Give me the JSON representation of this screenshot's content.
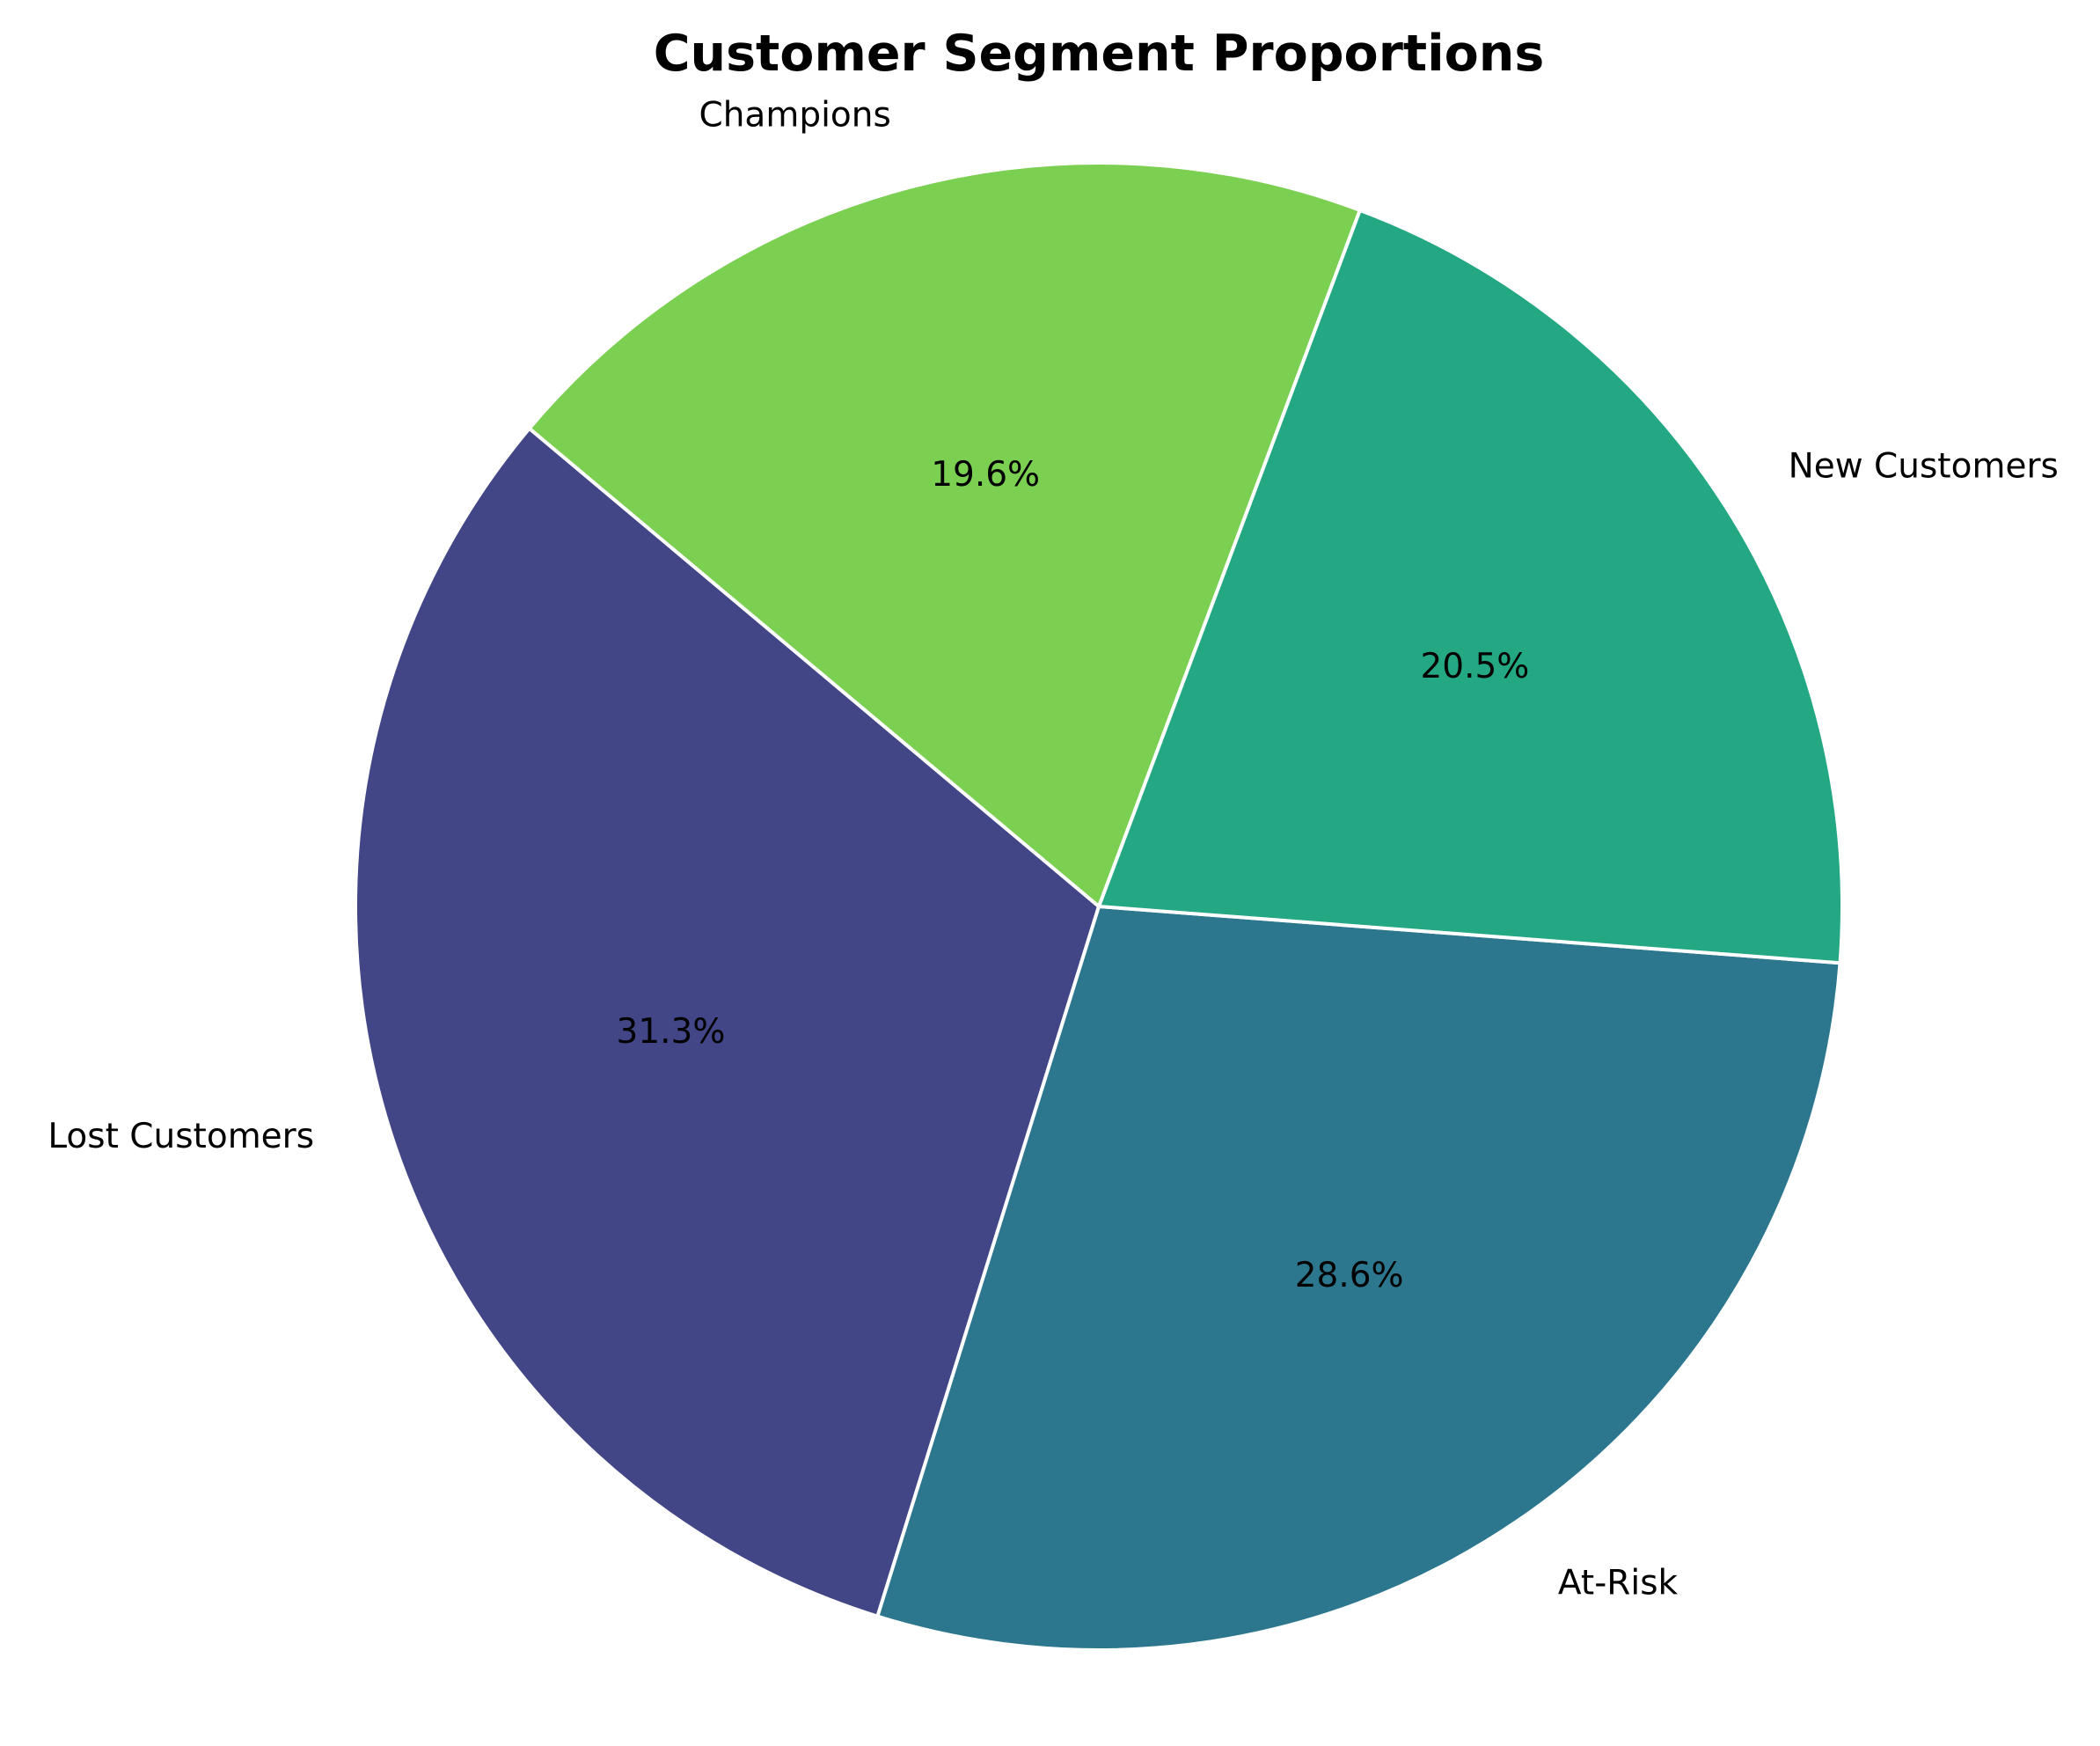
{
  "chart_data": {
    "type": "pie",
    "title": "Customer Segment Proportions",
    "slices": [
      {
        "label": "Lost Customers",
        "value": 31.3,
        "pct_label": "31.3%",
        "color": "#424686"
      },
      {
        "label": "At-Risk",
        "value": 28.6,
        "pct_label": "28.6%",
        "color": "#2c778e"
      },
      {
        "label": "New Customers",
        "value": 20.5,
        "pct_label": "20.5%",
        "color": "#24a884"
      },
      {
        "label": "Champions",
        "value": 19.6,
        "pct_label": "19.6%",
        "color": "#7bd052"
      }
    ],
    "start_angle_deg": 140,
    "direction": "counterclockwise",
    "edge_color": "#ffffff"
  }
}
